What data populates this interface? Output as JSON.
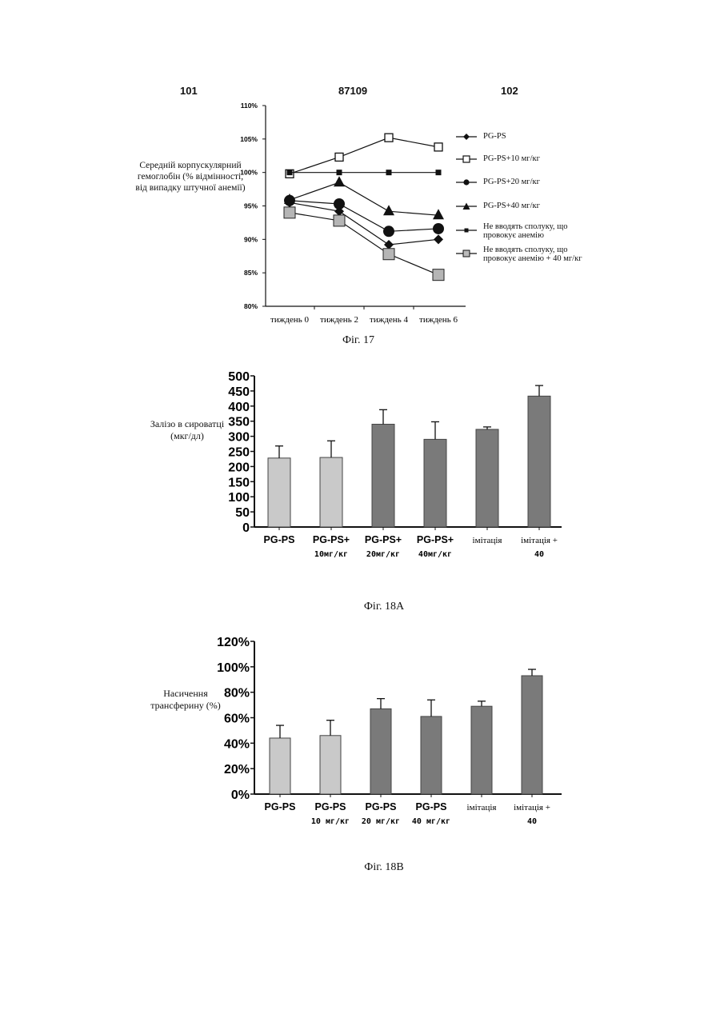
{
  "header": {
    "left": "101",
    "center": "87109",
    "right": "102"
  },
  "colors": {
    "ink": "#111111",
    "bar_light": "#c9c9c9",
    "bar_dark": "#7a7a7a"
  },
  "chart_data": [
    {
      "type": "line",
      "caption": "Фіг. 17",
      "ylabel": "Середній корпускулярний гемоглобін (% відмінності, від випадку штучної анемії)",
      "x": [
        "тиждень 0",
        "тиждень 2",
        "тиждень 4",
        "тиждень 6"
      ],
      "y_ticks": [
        "80%",
        "85%",
        "90%",
        "95%",
        "100%",
        "105%",
        "110%"
      ],
      "ylim": [
        80,
        110
      ],
      "legend_position": "right",
      "series": [
        {
          "name": "PG-PS",
          "marker": "diamond",
          "values": [
            95.5,
            94.2,
            89.2,
            90.0
          ]
        },
        {
          "name": "PG-PS+10 мг/кг",
          "marker": "open-square",
          "values": [
            99.8,
            102.3,
            105.2,
            103.8
          ]
        },
        {
          "name": "PG-PS+20 мг/кг",
          "marker": "circle",
          "values": [
            95.8,
            95.3,
            91.2,
            91.6
          ]
        },
        {
          "name": "PG-PS+40 мг/кг",
          "marker": "triangle",
          "values": [
            95.9,
            98.5,
            94.2,
            93.6
          ]
        },
        {
          "name": "Не вводять сполуку, що провокує анемію",
          "marker": "small-square",
          "values": [
            100.0,
            100.0,
            100.0,
            100.0
          ]
        },
        {
          "name": "Не вводять сполуку, що провокує анемію + 40 мг/кг",
          "marker": "grey-square",
          "values": [
            94.0,
            92.8,
            87.8,
            84.7
          ]
        }
      ]
    },
    {
      "type": "bar",
      "caption": "Фіг. 18A",
      "ylabel": "Залізо в сироватці (мкг/дл)",
      "y_ticks": [
        "0",
        "50",
        "100",
        "150",
        "200",
        "250",
        "300",
        "350",
        "400",
        "450",
        "500"
      ],
      "ylim": [
        0,
        500
      ],
      "categories": [
        "PG-PS",
        "PG-PS+ 10мг/кг",
        "PG-PS+ 20мг/кг",
        "PG-PS+ 40мг/кг",
        "імітація",
        "імітація + 40"
      ],
      "cat_line1": [
        "PG-PS",
        "PG-PS+",
        "PG-PS+",
        "PG-PS+",
        "імітація",
        "імітація +"
      ],
      "cat_line2": [
        "",
        "10мг/кг",
        "20мг/кг",
        "40мг/кг",
        "",
        "40"
      ],
      "values": [
        228,
        230,
        340,
        290,
        323,
        433
      ],
      "errors": [
        40,
        55,
        48,
        58,
        8,
        35
      ]
    },
    {
      "type": "bar",
      "caption": "Фіг. 18B",
      "ylabel": "Насичення трансферину (%)",
      "y_ticks": [
        "0%",
        "20%",
        "40%",
        "60%",
        "80%",
        "100%",
        "120%"
      ],
      "ylim": [
        0,
        120
      ],
      "categories": [
        "PG-PS",
        "PG-PS 10 мг/кг",
        "PG-PS 20 мг/кг",
        "PG-PS 40 мг/кг",
        "імітація",
        "імітація + 40"
      ],
      "cat_line1": [
        "PG-PS",
        "PG-PS",
        "PG-PS",
        "PG-PS",
        "імітація",
        "імітація +"
      ],
      "cat_line2": [
        "",
        "10 мг/кг",
        "20 мг/кг",
        "40 мг/кг",
        "",
        "40"
      ],
      "values": [
        44,
        46,
        67,
        61,
        69,
        93
      ],
      "errors": [
        10,
        12,
        8,
        13,
        4,
        5
      ]
    }
  ]
}
